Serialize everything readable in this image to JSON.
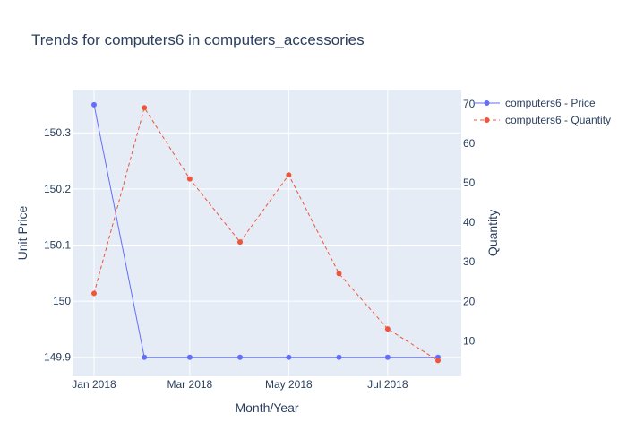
{
  "chart_data": {
    "type": "line",
    "title": "Trends for computers6 in computers_accessories",
    "xlabel": "Month/Year",
    "ylabel_left": "Unit Price",
    "ylabel_right": "Quantity",
    "x": [
      "2018-01-01",
      "2018-02-01",
      "2018-03-01",
      "2018-04-01",
      "2018-05-01",
      "2018-06-01",
      "2018-07-01",
      "2018-08-01"
    ],
    "x_tick_labels": [
      {
        "x": "2018-01-01",
        "label": "Jan 2018"
      },
      {
        "x": "2018-03-01",
        "label": "Mar 2018"
      },
      {
        "x": "2018-05-01",
        "label": "May 2018"
      },
      {
        "x": "2018-07-01",
        "label": "Jul 2018"
      }
    ],
    "y_left_ticks": [
      149.9,
      150,
      150.1,
      150.2,
      150.3
    ],
    "y_left_tick_labels": [
      "149.9",
      "150",
      "150.1",
      "150.2",
      "150.3"
    ],
    "y_right_ticks": [
      10,
      20,
      30,
      40,
      50,
      60,
      70
    ],
    "y_right_tick_labels": [
      "10",
      "20",
      "30",
      "40",
      "50",
      "60",
      "70"
    ],
    "ylim_left": [
      149.866,
      150.377
    ],
    "ylim_right": [
      1.0,
      73.6
    ],
    "grid": true,
    "legend_position": "top-right",
    "series": [
      {
        "name": "computers6 - Price",
        "axis": "left",
        "color": "#636efa",
        "dash": "solid",
        "values": [
          150.35,
          149.9,
          149.9,
          149.9,
          149.9,
          149.9,
          149.9,
          149.9
        ]
      },
      {
        "name": "computers6 - Quantity",
        "axis": "right",
        "color": "#ef553b",
        "dash": "dash",
        "values": [
          22,
          69,
          51,
          35,
          52,
          27,
          13,
          5
        ]
      }
    ]
  }
}
